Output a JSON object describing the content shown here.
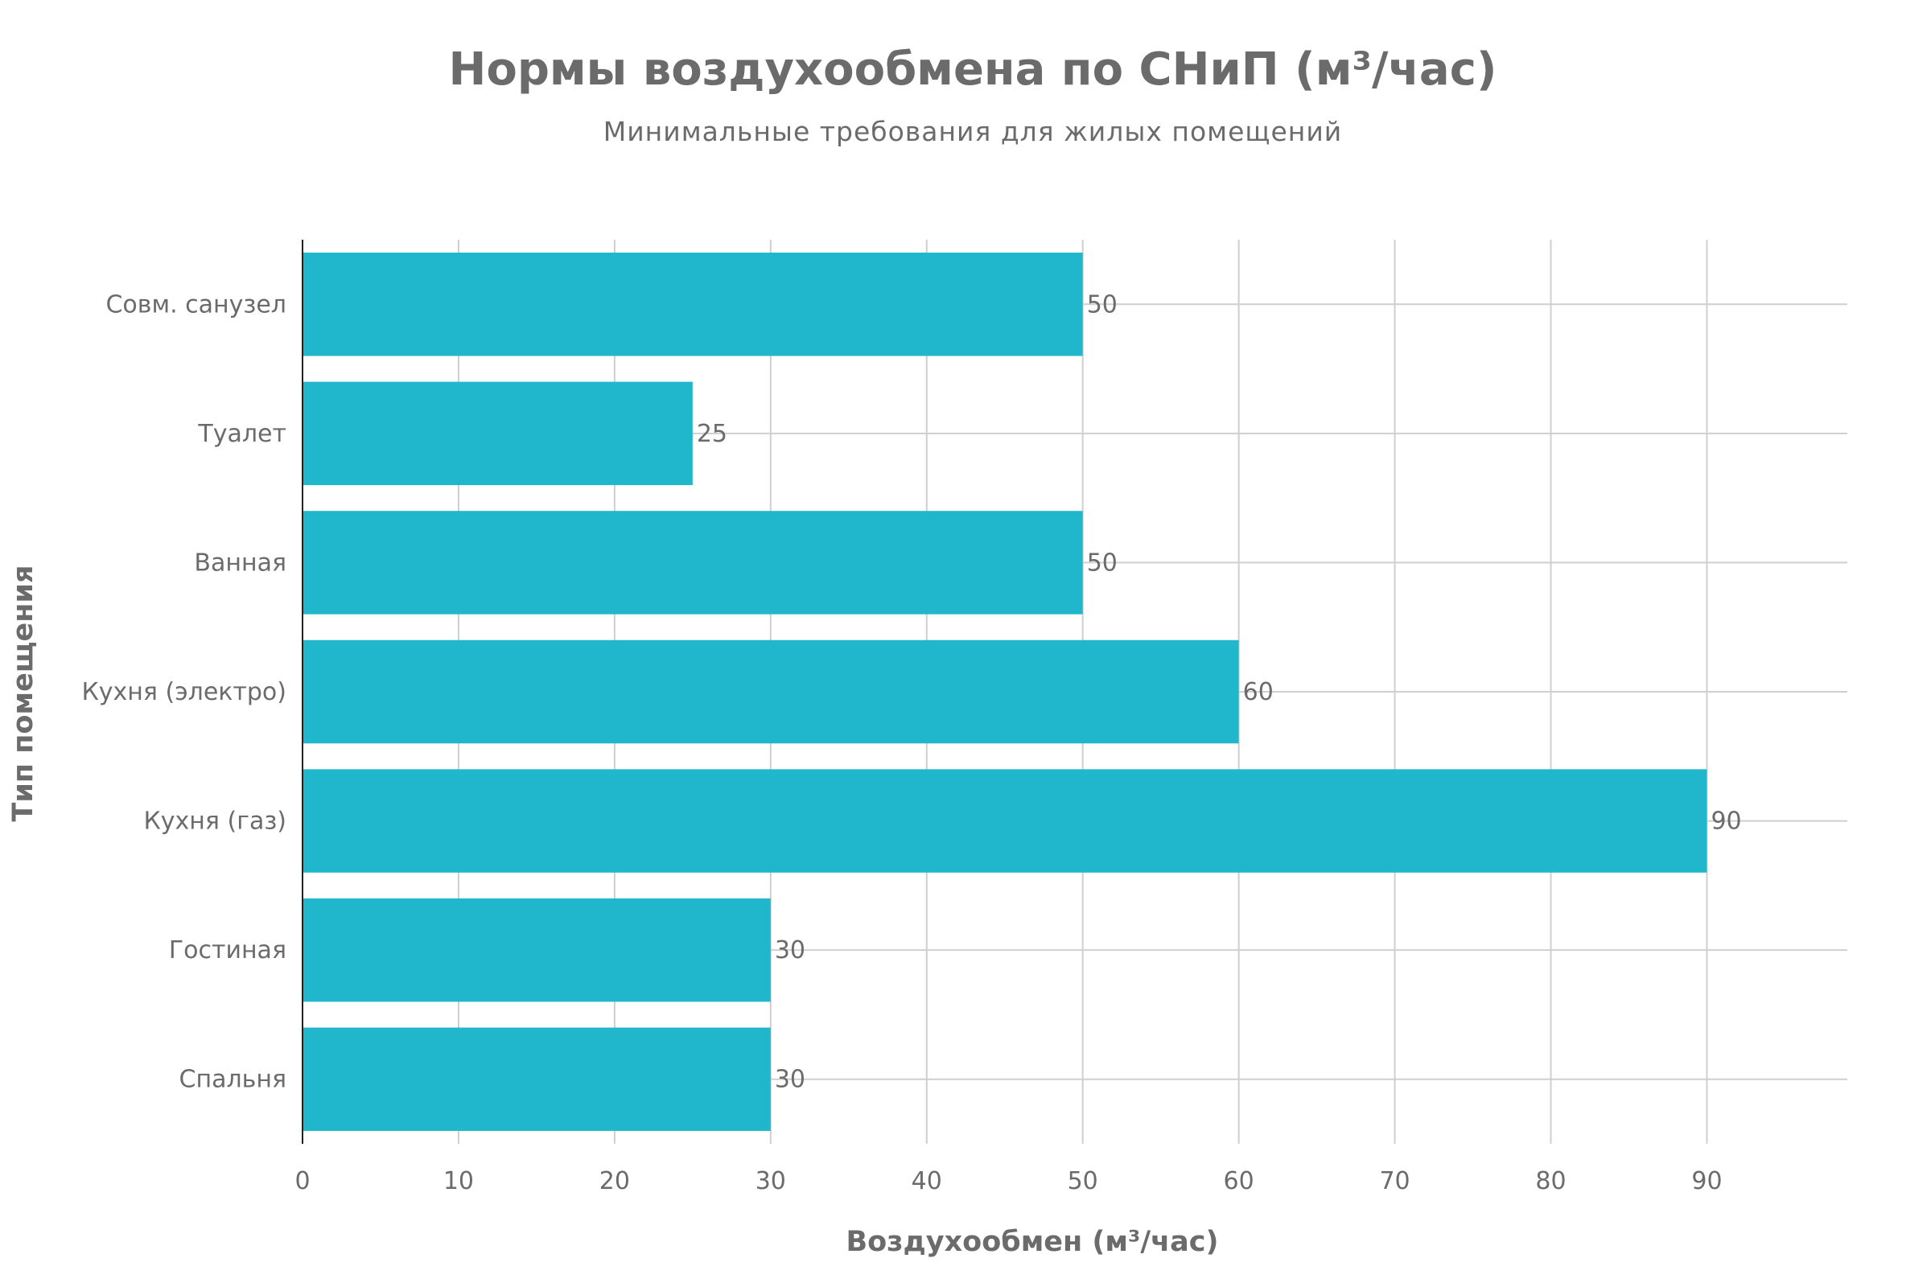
{
  "chart_data": {
    "type": "bar",
    "orientation": "horizontal",
    "title": "Нормы воздухообмена по СНиП (м³/час)",
    "subtitle": "Минимальные требования для жилых помещений",
    "xlabel": "Воздухообмен (м³/час)",
    "ylabel": "Тип помещения",
    "categories": [
      "Совм. санузел",
      "Туалет",
      "Ванная",
      "Кухня (электро)",
      "Кухня (газ)",
      "Гостиная",
      "Спальня"
    ],
    "values": [
      50,
      25,
      50,
      60,
      90,
      30,
      30
    ],
    "data_labels": [
      "50",
      "25",
      "50",
      "60",
      "90",
      "30",
      "30"
    ],
    "xlim": [
      0,
      99
    ],
    "x_ticks": [
      0,
      10,
      20,
      30,
      40,
      50,
      60,
      70,
      80,
      90
    ],
    "x_tick_labels": [
      "0",
      "10",
      "20",
      "30",
      "40",
      "50",
      "60",
      "70",
      "80",
      "90"
    ],
    "grid": true,
    "legend": "none",
    "bar_color": "#20B7CC",
    "text_color": "#6b6b6b"
  }
}
